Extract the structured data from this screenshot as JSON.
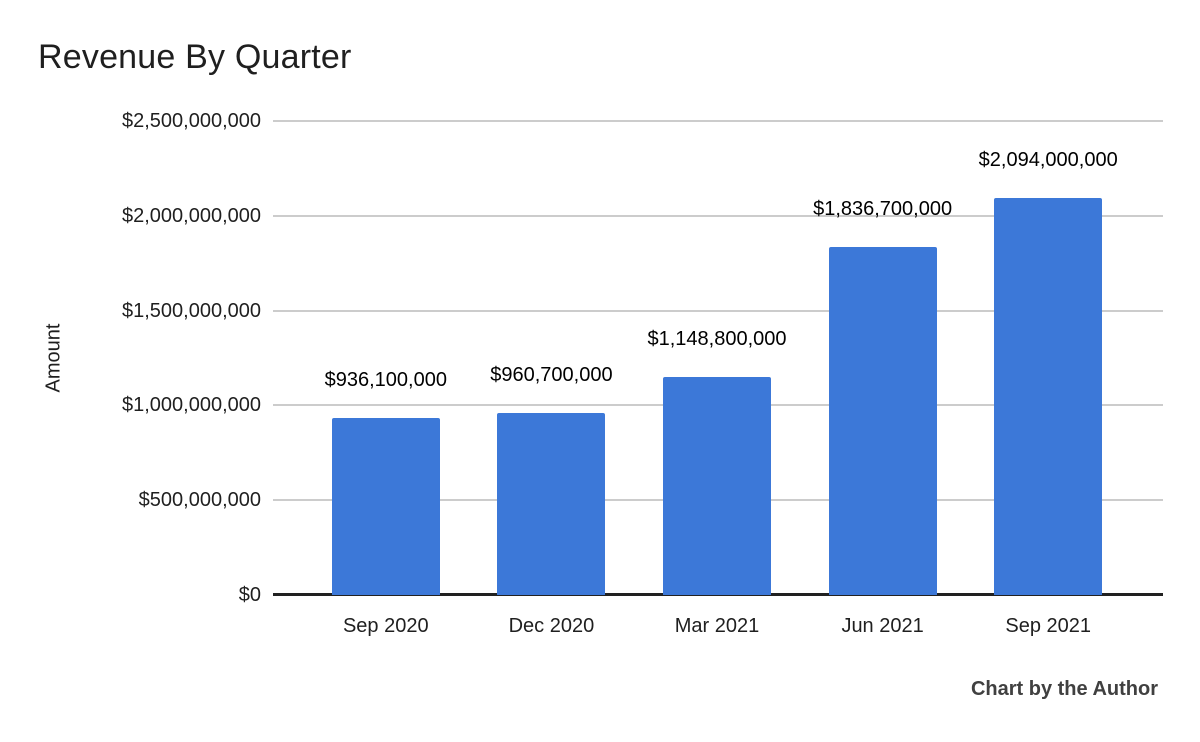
{
  "page": {
    "background_color": "#ffffff"
  },
  "chart_data": {
    "type": "bar",
    "title": "Revenue By Quarter",
    "xlabel": "",
    "ylabel": "Amount",
    "categories": [
      "Sep 2020",
      "Dec 2020",
      "Mar 2021",
      "Jun 2021",
      "Sep 2021"
    ],
    "values": [
      936100000,
      960700000,
      1148800000,
      1836700000,
      2094000000
    ],
    "value_labels": [
      "$936,100,000",
      "$960,700,000",
      "$1,148,800,000",
      "$1,836,700,000",
      "$2,094,000,000"
    ],
    "ylim": [
      0,
      2500000000
    ],
    "yticks": [
      {
        "value": 0,
        "label": "$0"
      },
      {
        "value": 500000000,
        "label": "$500,000,000"
      },
      {
        "value": 1000000000,
        "label": "$1,000,000,000"
      },
      {
        "value": 1500000000,
        "label": "$1,500,000,000"
      },
      {
        "value": 2000000000,
        "label": "$2,000,000,000"
      },
      {
        "value": 2500000000,
        "label": "$2,500,000,000"
      }
    ],
    "grid": true,
    "legend_position": "none",
    "bar_color": "#3c78d8",
    "gridline_color": "#cccccc",
    "axis_line_color": "#212121"
  },
  "footer": {
    "credit": "Chart by the Author"
  }
}
